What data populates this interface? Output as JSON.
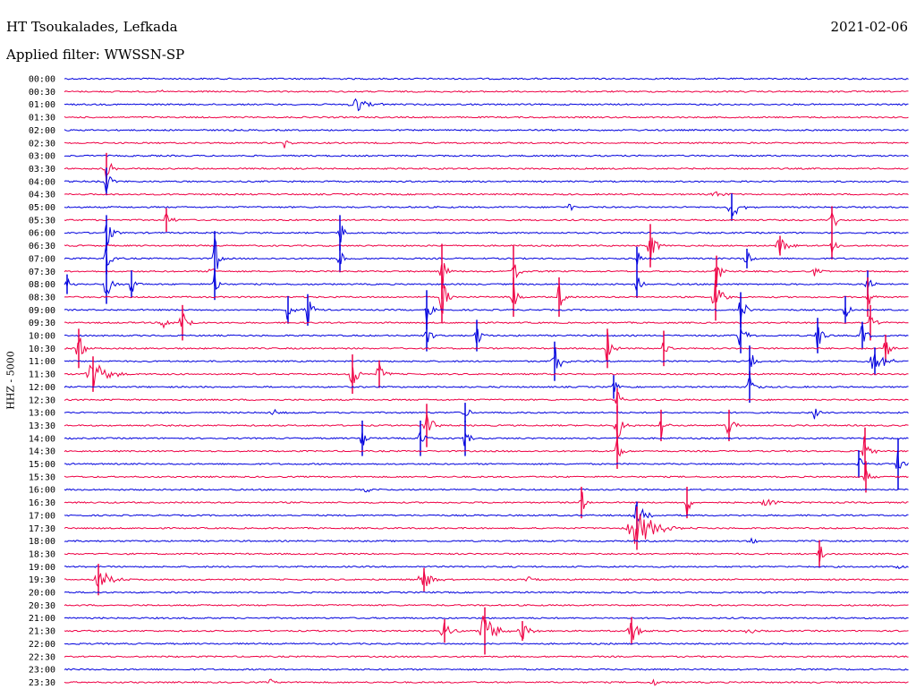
{
  "header": {
    "station": "HT Tsoukalades, Lefkada",
    "filter": "Applied filter: WWSSN-SP",
    "date": "2021-02-06",
    "channel": "HHZ - 5000"
  },
  "colors": {
    "even_trace": "#0000dd",
    "odd_trace": "#ee0044"
  },
  "rows": [
    {
      "t": "00:00",
      "ev": []
    },
    {
      "t": "00:30",
      "ev": [
        [
          180,
          3,
          2
        ],
        [
          930,
          3,
          2
        ]
      ]
    },
    {
      "t": "01:00",
      "ev": [
        [
          398,
          9,
          10
        ]
      ]
    },
    {
      "t": "01:30",
      "ev": []
    },
    {
      "t": "02:00",
      "ev": []
    },
    {
      "t": "02:30",
      "ev": [
        [
          318,
          7,
          3
        ]
      ]
    },
    {
      "t": "03:00",
      "ev": []
    },
    {
      "t": "03:30",
      "ev": [
        [
          119,
          16,
          4
        ]
      ]
    },
    {
      "t": "04:00",
      "ev": [
        [
          119,
          14,
          4
        ]
      ]
    },
    {
      "t": "04:30",
      "ev": [
        [
          800,
          4,
          6
        ]
      ]
    },
    {
      "t": "05:00",
      "ev": [
        [
          637,
          6,
          3
        ],
        [
          818,
          14,
          6
        ]
      ]
    },
    {
      "t": "05:30",
      "ev": [
        [
          186,
          12,
          4
        ],
        [
          930,
          14,
          4
        ]
      ]
    },
    {
      "t": "06:00",
      "ev": [
        [
          119,
          18,
          4
        ],
        [
          380,
          18,
          3
        ]
      ]
    },
    {
      "t": "06:30",
      "ev": [
        [
          727,
          22,
          4
        ],
        [
          872,
          10,
          6
        ],
        [
          930,
          14,
          3
        ]
      ]
    },
    {
      "t": "07:00",
      "ev": [
        [
          119,
          16,
          4
        ],
        [
          240,
          28,
          3
        ],
        [
          380,
          14,
          3
        ],
        [
          712,
          12,
          3
        ],
        [
          835,
          10,
          4
        ]
      ]
    },
    {
      "t": "07:30",
      "ev": [
        [
          236,
          6,
          3
        ],
        [
          494,
          28,
          3
        ],
        [
          574,
          26,
          3
        ],
        [
          801,
          16,
          4
        ],
        [
          912,
          8,
          4
        ]
      ]
    },
    {
      "t": "08:00",
      "ev": [
        [
          75,
          10,
          3
        ],
        [
          119,
          20,
          4
        ],
        [
          147,
          14,
          3
        ],
        [
          240,
          16,
          3
        ],
        [
          712,
          14,
          3
        ],
        [
          970,
          14,
          4
        ]
      ]
    },
    {
      "t": "08:30",
      "ev": [
        [
          494,
          26,
          4
        ],
        [
          574,
          20,
          3
        ],
        [
          625,
          20,
          3
        ],
        [
          800,
          24,
          5
        ],
        [
          970,
          20,
          3
        ]
      ]
    },
    {
      "t": "09:00",
      "ev": [
        [
          322,
          14,
          4
        ],
        [
          344,
          16,
          4
        ],
        [
          477,
          20,
          3
        ],
        [
          828,
          18,
          4
        ],
        [
          945,
          14,
          3
        ]
      ]
    },
    {
      "t": "09:30",
      "ev": [
        [
          183,
          8,
          4
        ],
        [
          204,
          18,
          4
        ],
        [
          973,
          18,
          4
        ]
      ]
    },
    {
      "t": "10:00",
      "ev": [
        [
          477,
          16,
          3
        ],
        [
          533,
          16,
          3
        ],
        [
          828,
          18,
          4
        ],
        [
          914,
          18,
          4
        ],
        [
          964,
          14,
          4
        ]
      ]
    },
    {
      "t": "10:30",
      "ev": [
        [
          88,
          20,
          4
        ],
        [
          679,
          20,
          4
        ],
        [
          742,
          18,
          4
        ],
        [
          990,
          14,
          4
        ]
      ]
    },
    {
      "t": "11:00",
      "ev": [
        [
          620,
          20,
          5
        ],
        [
          838,
          16,
          4
        ],
        [
          978,
          14,
          8
        ]
      ]
    },
    {
      "t": "11:30",
      "ev": [
        [
          104,
          18,
          10
        ],
        [
          394,
          20,
          4
        ],
        [
          424,
          14,
          4
        ]
      ]
    },
    {
      "t": "12:00",
      "ev": [
        [
          838,
          16,
          4
        ],
        [
          686,
          12,
          3
        ]
      ]
    },
    {
      "t": "12:30",
      "ev": [
        [
          690,
          12,
          3
        ]
      ]
    },
    {
      "t": "13:00",
      "ev": [
        [
          305,
          4,
          6
        ],
        [
          520,
          10,
          3
        ],
        [
          910,
          8,
          3
        ]
      ]
    },
    {
      "t": "13:30",
      "ev": [
        [
          477,
          22,
          4
        ],
        [
          690,
          20,
          4
        ],
        [
          739,
          16,
          4
        ],
        [
          815,
          16,
          4
        ]
      ]
    },
    {
      "t": "14:00",
      "ev": [
        [
          405,
          18,
          3
        ],
        [
          470,
          18,
          3
        ],
        [
          520,
          18,
          3
        ]
      ]
    },
    {
      "t": "14:30",
      "ev": [
        [
          690,
          18,
          3
        ],
        [
          967,
          24,
          4
        ]
      ]
    },
    {
      "t": "15:00",
      "ev": [
        [
          960,
          14,
          3
        ],
        [
          1004,
          26,
          3
        ]
      ]
    },
    {
      "t": "15:30",
      "ev": [
        [
          968,
          16,
          3
        ]
      ]
    },
    {
      "t": "16:00",
      "ev": [
        [
          410,
          4,
          6
        ]
      ]
    },
    {
      "t": "16:30",
      "ev": [
        [
          650,
          16,
          3
        ],
        [
          768,
          16,
          3
        ],
        [
          855,
          5,
          8
        ]
      ]
    },
    {
      "t": "17:00",
      "ev": [
        [
          712,
          14,
          6
        ]
      ]
    },
    {
      "t": "17:30",
      "ev": [
        [
          712,
          22,
          14
        ]
      ]
    },
    {
      "t": "18:00",
      "ev": [
        [
          840,
          4,
          6
        ]
      ]
    },
    {
      "t": "18:30",
      "ev": [
        [
          916,
          14,
          3
        ]
      ]
    },
    {
      "t": "19:00",
      "ev": [
        [
          1004,
          4,
          3
        ]
      ]
    },
    {
      "t": "19:30",
      "ev": [
        [
          110,
          16,
          8
        ],
        [
          474,
          12,
          8
        ],
        [
          590,
          5,
          4
        ]
      ]
    },
    {
      "t": "20:00",
      "ev": []
    },
    {
      "t": "20:30",
      "ev": []
    },
    {
      "t": "21:00",
      "ev": []
    },
    {
      "t": "21:30",
      "ev": [
        [
          497,
          12,
          6
        ],
        [
          542,
          24,
          8
        ],
        [
          584,
          10,
          6
        ],
        [
          706,
          14,
          6
        ],
        [
          836,
          5,
          4
        ]
      ]
    },
    {
      "t": "22:00",
      "ev": []
    },
    {
      "t": "22:30",
      "ev": []
    },
    {
      "t": "23:00",
      "ev": []
    },
    {
      "t": "23:30",
      "ev": [
        [
          303,
          6,
          4
        ],
        [
          730,
          8,
          3
        ]
      ]
    }
  ]
}
